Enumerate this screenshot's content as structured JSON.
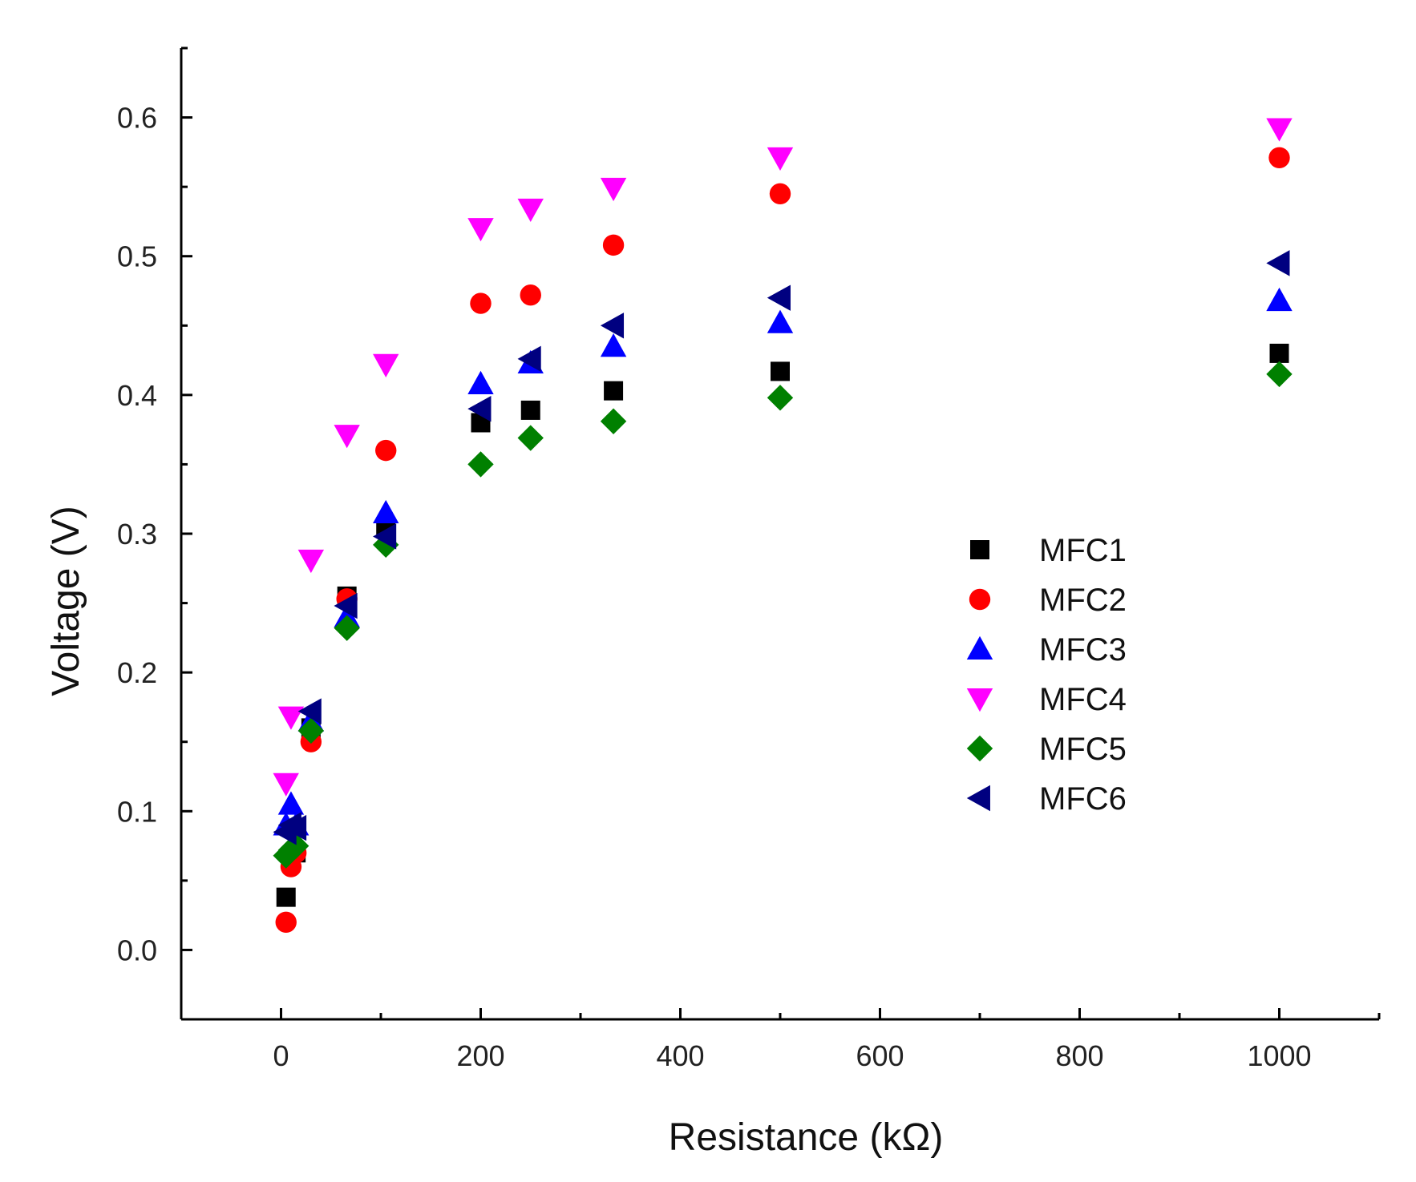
{
  "chart_data": {
    "type": "scatter",
    "title": "",
    "xlabel": "Resistance (kΩ)",
    "ylabel": "Voltage (V)",
    "xlim": [
      -100,
      1100
    ],
    "ylim": [
      -0.05,
      0.65
    ],
    "x_ticks": [
      0,
      200,
      400,
      600,
      800,
      1000
    ],
    "x_tick_labels": [
      "0",
      "200",
      "400",
      "600",
      "800",
      "1000"
    ],
    "y_ticks": [
      0.0,
      0.1,
      0.2,
      0.3,
      0.4,
      0.5,
      0.6
    ],
    "y_tick_labels": [
      "0.0",
      "0.1",
      "0.2",
      "0.3",
      "0.4",
      "0.5",
      "0.6"
    ],
    "grid": false,
    "legend_position": "right-center",
    "series": [
      {
        "name": "MFC1",
        "marker": "square",
        "color": "#000000",
        "points": [
          [
            5,
            0.038
          ],
          [
            10,
            0.065
          ],
          [
            15,
            0.07
          ],
          [
            30,
            0.16
          ],
          [
            66,
            0.255
          ],
          [
            105,
            0.305
          ],
          [
            200,
            0.38
          ],
          [
            250,
            0.389
          ],
          [
            333,
            0.403
          ],
          [
            500,
            0.417
          ],
          [
            1000,
            0.43
          ]
        ]
      },
      {
        "name": "MFC2",
        "marker": "circle",
        "color": "#ff0000",
        "points": [
          [
            5,
            0.02
          ],
          [
            10,
            0.06
          ],
          [
            15,
            0.07
          ],
          [
            30,
            0.15
          ],
          [
            66,
            0.253
          ],
          [
            105,
            0.36
          ],
          [
            200,
            0.466
          ],
          [
            250,
            0.472
          ],
          [
            333,
            0.508
          ],
          [
            500,
            0.545
          ],
          [
            1000,
            0.571
          ]
        ]
      },
      {
        "name": "MFC3",
        "marker": "triangle-up",
        "color": "#0000ff",
        "points": [
          [
            5,
            0.09
          ],
          [
            10,
            0.105
          ],
          [
            15,
            0.09
          ],
          [
            30,
            0.165
          ],
          [
            66,
            0.24
          ],
          [
            105,
            0.315
          ],
          [
            200,
            0.408
          ],
          [
            250,
            0.423
          ],
          [
            333,
            0.435
          ],
          [
            500,
            0.452
          ],
          [
            1000,
            0.468
          ]
        ]
      },
      {
        "name": "MFC4",
        "marker": "triangle-down",
        "color": "#ff00ff",
        "points": [
          [
            5,
            0.12
          ],
          [
            10,
            0.168
          ],
          [
            30,
            0.281
          ],
          [
            66,
            0.371
          ],
          [
            105,
            0.422
          ],
          [
            200,
            0.52
          ],
          [
            250,
            0.534
          ],
          [
            333,
            0.549
          ],
          [
            500,
            0.571
          ],
          [
            1000,
            0.592
          ]
        ]
      },
      {
        "name": "MFC5",
        "marker": "diamond",
        "color": "#008000",
        "points": [
          [
            5,
            0.068
          ],
          [
            10,
            0.072
          ],
          [
            15,
            0.075
          ],
          [
            30,
            0.158
          ],
          [
            66,
            0.232
          ],
          [
            105,
            0.292
          ],
          [
            200,
            0.35
          ],
          [
            250,
            0.369
          ],
          [
            333,
            0.381
          ],
          [
            500,
            0.398
          ],
          [
            1000,
            0.415
          ]
        ]
      },
      {
        "name": "MFC6",
        "marker": "triangle-left",
        "color": "#000080",
        "points": [
          [
            5,
            0.085
          ],
          [
            10,
            0.09
          ],
          [
            15,
            0.088
          ],
          [
            30,
            0.172
          ],
          [
            66,
            0.248
          ],
          [
            105,
            0.298
          ],
          [
            200,
            0.39
          ],
          [
            250,
            0.426
          ],
          [
            333,
            0.45
          ],
          [
            500,
            0.47
          ],
          [
            1000,
            0.495
          ]
        ]
      }
    ]
  }
}
